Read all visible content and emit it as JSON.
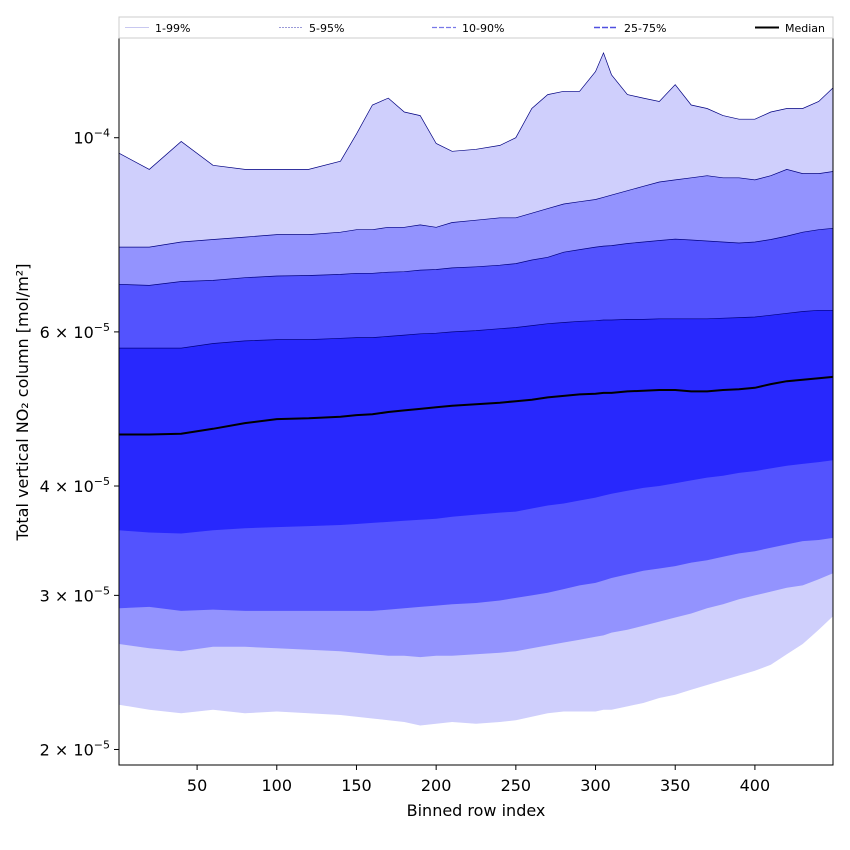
{
  "chart_data": {
    "type": "area",
    "xlabel": "Binned row index",
    "ylabel": "Total vertical NO₂ column [mol/m²]",
    "x_range": [
      1,
      449
    ],
    "ylim": [
      1.92e-05,
      0.00013
    ],
    "yscale": "log",
    "x_ticks": [
      50,
      100,
      150,
      200,
      250,
      300,
      350,
      400
    ],
    "y_ticks": [
      {
        "value": 2e-05,
        "mant": "2",
        "exp": "−5"
      },
      {
        "value": 3e-05,
        "mant": "3",
        "exp": "−5"
      },
      {
        "value": 4e-05,
        "mant": "4",
        "exp": "−5"
      },
      {
        "value": 6e-05,
        "mant": "6",
        "exp": "−5"
      },
      {
        "value": 0.0001,
        "mant": "",
        "exp": "−4"
      }
    ],
    "legend_position": "top",
    "legend": [
      "1-99%",
      "5-95%",
      "10-90%",
      "25-75%",
      "Median"
    ],
    "x": [
      1,
      20,
      40,
      60,
      80,
      100,
      120,
      140,
      150,
      160,
      170,
      180,
      190,
      200,
      210,
      225,
      240,
      250,
      260,
      270,
      280,
      290,
      300,
      305,
      310,
      320,
      330,
      340,
      350,
      360,
      370,
      380,
      390,
      400,
      410,
      420,
      430,
      440,
      449
    ],
    "series": [
      {
        "name": "1-99%",
        "color": "#cfcffc",
        "upper": [
          9.6e-05,
          9.2e-05,
          9.9e-05,
          9.3e-05,
          9.2e-05,
          9.2e-05,
          9.2e-05,
          9.4e-05,
          0.000101,
          0.000109,
          0.000111,
          0.000107,
          0.000106,
          9.85e-05,
          9.65e-05,
          9.7e-05,
          9.8e-05,
          0.0001,
          0.000108,
          0.000112,
          0.000113,
          0.000113,
          0.000119,
          0.000125,
          0.000118,
          0.000112,
          0.000111,
          0.00011,
          0.000115,
          0.000109,
          0.000108,
          0.000106,
          0.000105,
          0.000105,
          0.000107,
          0.000108,
          0.000108,
          0.00011,
          0.000114
        ],
        "lower": [
          2.25e-05,
          2.22e-05,
          2.2e-05,
          2.22e-05,
          2.2e-05,
          2.21e-05,
          2.2e-05,
          2.19e-05,
          2.18e-05,
          2.17e-05,
          2.16e-05,
          2.15e-05,
          2.13e-05,
          2.14e-05,
          2.15e-05,
          2.14e-05,
          2.15e-05,
          2.16e-05,
          2.18e-05,
          2.2e-05,
          2.21e-05,
          2.21e-05,
          2.21e-05,
          2.22e-05,
          2.22e-05,
          2.24e-05,
          2.26e-05,
          2.29e-05,
          2.31e-05,
          2.34e-05,
          2.37e-05,
          2.4e-05,
          2.43e-05,
          2.46e-05,
          2.5e-05,
          2.57e-05,
          2.64e-05,
          2.74e-05,
          2.84e-05
        ]
      },
      {
        "name": "5-95%",
        "color": "#9393fe",
        "upper": [
          7.5e-05,
          7.5e-05,
          7.6e-05,
          7.65e-05,
          7.7e-05,
          7.75e-05,
          7.75e-05,
          7.8e-05,
          7.85e-05,
          7.85e-05,
          7.9e-05,
          7.9e-05,
          7.95e-05,
          7.9e-05,
          8e-05,
          8.05e-05,
          8.1e-05,
          8.1e-05,
          8.2e-05,
          8.3e-05,
          8.4e-05,
          8.45e-05,
          8.5e-05,
          8.55e-05,
          8.6e-05,
          8.7e-05,
          8.8e-05,
          8.9e-05,
          8.95e-05,
          9e-05,
          9.05e-05,
          9e-05,
          9e-05,
          8.95e-05,
          9.05e-05,
          9.2e-05,
          9.1e-05,
          9.1e-05,
          9.15e-05
        ],
        "lower": [
          2.64e-05,
          2.61e-05,
          2.59e-05,
          2.62e-05,
          2.62e-05,
          2.61e-05,
          2.6e-05,
          2.59e-05,
          2.58e-05,
          2.57e-05,
          2.56e-05,
          2.56e-05,
          2.55e-05,
          2.56e-05,
          2.56e-05,
          2.57e-05,
          2.58e-05,
          2.59e-05,
          2.61e-05,
          2.63e-05,
          2.65e-05,
          2.67e-05,
          2.69e-05,
          2.7e-05,
          2.72e-05,
          2.74e-05,
          2.77e-05,
          2.8e-05,
          2.83e-05,
          2.86e-05,
          2.9e-05,
          2.93e-05,
          2.97e-05,
          3e-05,
          3.03e-05,
          3.06e-05,
          3.08e-05,
          3.13e-05,
          3.18e-05
        ]
      },
      {
        "name": "10-90%",
        "color": "#5353fe",
        "upper": [
          6.8e-05,
          6.78e-05,
          6.85e-05,
          6.87e-05,
          6.92e-05,
          6.95e-05,
          6.96e-05,
          6.98e-05,
          7e-05,
          7e-05,
          7.02e-05,
          7.03e-05,
          7.06e-05,
          7.07e-05,
          7.1e-05,
          7.12e-05,
          7.15e-05,
          7.18e-05,
          7.25e-05,
          7.3e-05,
          7.4e-05,
          7.45e-05,
          7.5e-05,
          7.52e-05,
          7.53e-05,
          7.57e-05,
          7.6e-05,
          7.63e-05,
          7.66e-05,
          7.64e-05,
          7.62e-05,
          7.6e-05,
          7.58e-05,
          7.6e-05,
          7.65e-05,
          7.72e-05,
          7.8e-05,
          7.85e-05,
          7.88e-05
        ],
        "lower": [
          2.9e-05,
          2.91e-05,
          2.88e-05,
          2.89e-05,
          2.88e-05,
          2.88e-05,
          2.88e-05,
          2.88e-05,
          2.88e-05,
          2.88e-05,
          2.89e-05,
          2.9e-05,
          2.91e-05,
          2.92e-05,
          2.93e-05,
          2.94e-05,
          2.96e-05,
          2.98e-05,
          3e-05,
          3.02e-05,
          3.05e-05,
          3.08e-05,
          3.1e-05,
          3.12e-05,
          3.14e-05,
          3.17e-05,
          3.2e-05,
          3.22e-05,
          3.24e-05,
          3.27e-05,
          3.29e-05,
          3.32e-05,
          3.35e-05,
          3.37e-05,
          3.4e-05,
          3.43e-05,
          3.46e-05,
          3.47e-05,
          3.49e-05
        ]
      },
      {
        "name": "25-75%",
        "color": "#2828fd",
        "upper": [
          5.75e-05,
          5.75e-05,
          5.75e-05,
          5.82e-05,
          5.86e-05,
          5.88e-05,
          5.88e-05,
          5.9e-05,
          5.91e-05,
          5.91e-05,
          5.93e-05,
          5.95e-05,
          5.97e-05,
          5.98e-05,
          6e-05,
          6.02e-05,
          6.05e-05,
          6.07e-05,
          6.1e-05,
          6.13e-05,
          6.15e-05,
          6.17e-05,
          6.18e-05,
          6.19e-05,
          6.19e-05,
          6.2e-05,
          6.2e-05,
          6.21e-05,
          6.21e-05,
          6.21e-05,
          6.21e-05,
          6.22e-05,
          6.23e-05,
          6.24e-05,
          6.27e-05,
          6.3e-05,
          6.33e-05,
          6.35e-05,
          6.35e-05
        ],
        "lower": [
          3.56e-05,
          3.54e-05,
          3.53e-05,
          3.56e-05,
          3.58e-05,
          3.59e-05,
          3.6e-05,
          3.61e-05,
          3.62e-05,
          3.63e-05,
          3.64e-05,
          3.65e-05,
          3.66e-05,
          3.67e-05,
          3.69e-05,
          3.71e-05,
          3.73e-05,
          3.74e-05,
          3.77e-05,
          3.8e-05,
          3.82e-05,
          3.85e-05,
          3.88e-05,
          3.9e-05,
          3.92e-05,
          3.95e-05,
          3.98e-05,
          4e-05,
          4.03e-05,
          4.06e-05,
          4.09e-05,
          4.11e-05,
          4.14e-05,
          4.16e-05,
          4.19e-05,
          4.22e-05,
          4.24e-05,
          4.26e-05,
          4.28e-05
        ]
      },
      {
        "name": "Median",
        "color": "#000000",
        "values": [
          4.58e-05,
          4.58e-05,
          4.59e-05,
          4.65e-05,
          4.72e-05,
          4.77e-05,
          4.78e-05,
          4.8e-05,
          4.82e-05,
          4.83e-05,
          4.86e-05,
          4.88e-05,
          4.9e-05,
          4.92e-05,
          4.94e-05,
          4.96e-05,
          4.98e-05,
          5e-05,
          5.02e-05,
          5.05e-05,
          5.07e-05,
          5.09e-05,
          5.1e-05,
          5.11e-05,
          5.11e-05,
          5.13e-05,
          5.14e-05,
          5.15e-05,
          5.15e-05,
          5.13e-05,
          5.13e-05,
          5.15e-05,
          5.16e-05,
          5.18e-05,
          5.23e-05,
          5.27e-05,
          5.29e-05,
          5.31e-05,
          5.33e-05
        ]
      }
    ]
  }
}
